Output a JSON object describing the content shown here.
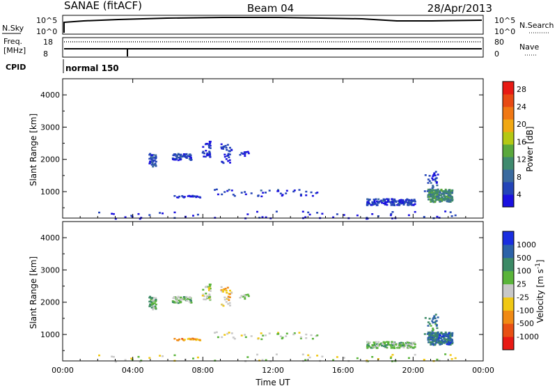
{
  "header": {
    "station": "SANAE (fitACF)",
    "beam": "Beam 04",
    "date": "28/Apr/2013"
  },
  "noise_panel": {
    "left_label": "N.Sky",
    "right_label": "N.Search",
    "left_ticks": [
      "10^5",
      "10^0"
    ],
    "right_ticks": [
      "10^5",
      "10^0"
    ]
  },
  "freq_panel": {
    "left_label_1": "Freq.",
    "left_label_2": "[MHz]",
    "left_ticks": [
      "18",
      "8"
    ],
    "right_label": "Nave",
    "right_ticks": [
      "80",
      "0"
    ]
  },
  "cpid": {
    "label": "CPID",
    "mode": "normal 150"
  },
  "chart_data": [
    {
      "type": "heatmap",
      "title": "",
      "ylabel": "Slant Range [km]",
      "xlabel": "",
      "ylim": [
        180,
        4500
      ],
      "xlim_hours": [
        0,
        24
      ],
      "yticks": [
        "1000",
        "2000",
        "3000",
        "4000"
      ],
      "xticks": [
        "00:00",
        "04:00",
        "08:00",
        "12:00",
        "16:00",
        "20:00",
        "00:00"
      ],
      "colorbar": {
        "label": "Power [dB]",
        "ticks": [
          "4",
          "8",
          "12",
          "16",
          "20",
          "24",
          "28"
        ],
        "colors": [
          "#1a10e0",
          "#2344b8",
          "#3a6a9e",
          "#3f8a6e",
          "#5aa83c",
          "#b4c814",
          "#f0a814",
          "#f07814",
          "#e84a14",
          "#e81a14"
        ]
      },
      "regions": [
        {
          "t": [
            4.9,
            5.3
          ],
          "r": [
            1800,
            2200
          ],
          "value": 7,
          "n": 40
        },
        {
          "t": [
            6.2,
            7.3
          ],
          "r": [
            2000,
            2200
          ],
          "value": 6,
          "n": 60
        },
        {
          "t": [
            7.9,
            8.4
          ],
          "r": [
            2100,
            2600
          ],
          "value": 5,
          "n": 30
        },
        {
          "t": [
            9.0,
            9.6
          ],
          "r": [
            1900,
            2500
          ],
          "value": 6,
          "n": 30
        },
        {
          "t": [
            10.0,
            10.6
          ],
          "r": [
            2100,
            2300
          ],
          "value": 5,
          "n": 10
        },
        {
          "t": [
            6.3,
            7.8
          ],
          "r": [
            840,
            900
          ],
          "value": 5,
          "n": 25
        },
        {
          "t": [
            8.5,
            14.5
          ],
          "r": [
            880,
            1100
          ],
          "value": 6,
          "n": 40
        },
        {
          "t": [
            17.3,
            20.1
          ],
          "r": [
            600,
            800
          ],
          "value": 6,
          "n": 160
        },
        {
          "t": [
            20.6,
            21.4
          ],
          "r": [
            950,
            1650
          ],
          "value": 7,
          "n": 35
        },
        {
          "t": [
            20.8,
            22.2
          ],
          "r": [
            700,
            1100
          ],
          "value": 13,
          "n": 220
        },
        {
          "t": [
            1.0,
            23.0
          ],
          "r": [
            180,
            420
          ],
          "value": 4,
          "n": 60
        }
      ]
    },
    {
      "type": "heatmap",
      "title": "",
      "ylabel": "Slant Range [km]",
      "xlabel": "Time UT",
      "ylim": [
        180,
        4500
      ],
      "xlim_hours": [
        0,
        24
      ],
      "yticks": [
        "1000",
        "2000",
        "3000",
        "4000"
      ],
      "xticks": [
        "00:00",
        "04:00",
        "08:00",
        "12:00",
        "16:00",
        "20:00",
        "00:00"
      ],
      "colorbar": {
        "label": "Velocity [m s^-1]",
        "ticks": [
          "1000",
          "500",
          "100",
          "25",
          "-25",
          "-100",
          "-500",
          "-1000"
        ],
        "colors": [
          "#1a2ee0",
          "#2c62a8",
          "#3c8a66",
          "#5ab43a",
          "#c8c8c8",
          "#f0c814",
          "#f08a14",
          "#e85014",
          "#e81a14"
        ]
      },
      "regions": [
        {
          "t": [
            4.9,
            5.3
          ],
          "r": [
            1800,
            2200
          ],
          "value": 0.35,
          "n": 40
        },
        {
          "t": [
            6.2,
            7.3
          ],
          "r": [
            2000,
            2200
          ],
          "value": 0.4,
          "n": 60
        },
        {
          "t": [
            7.9,
            8.4
          ],
          "r": [
            2100,
            2600
          ],
          "value": 0.5,
          "n": 30
        },
        {
          "t": [
            9.0,
            9.6
          ],
          "r": [
            1900,
            2500
          ],
          "value": 0.6,
          "n": 30
        },
        {
          "t": [
            10.0,
            10.6
          ],
          "r": [
            2100,
            2300
          ],
          "value": 0.45,
          "n": 10
        },
        {
          "t": [
            6.3,
            7.8
          ],
          "r": [
            840,
            900
          ],
          "value": 0.7,
          "n": 25
        },
        {
          "t": [
            8.5,
            14.5
          ],
          "r": [
            880,
            1100
          ],
          "value": 0.5,
          "n": 40
        },
        {
          "t": [
            17.3,
            20.1
          ],
          "r": [
            600,
            800
          ],
          "value": 0.4,
          "n": 160
        },
        {
          "t": [
            20.6,
            21.4
          ],
          "r": [
            950,
            1650
          ],
          "value": 0.25,
          "n": 35
        },
        {
          "t": [
            20.8,
            22.2
          ],
          "r": [
            700,
            1100
          ],
          "value": 0.2,
          "n": 220
        },
        {
          "t": [
            1.0,
            23.0
          ],
          "r": [
            180,
            420
          ],
          "value": 0.5,
          "n": 60
        }
      ]
    }
  ]
}
